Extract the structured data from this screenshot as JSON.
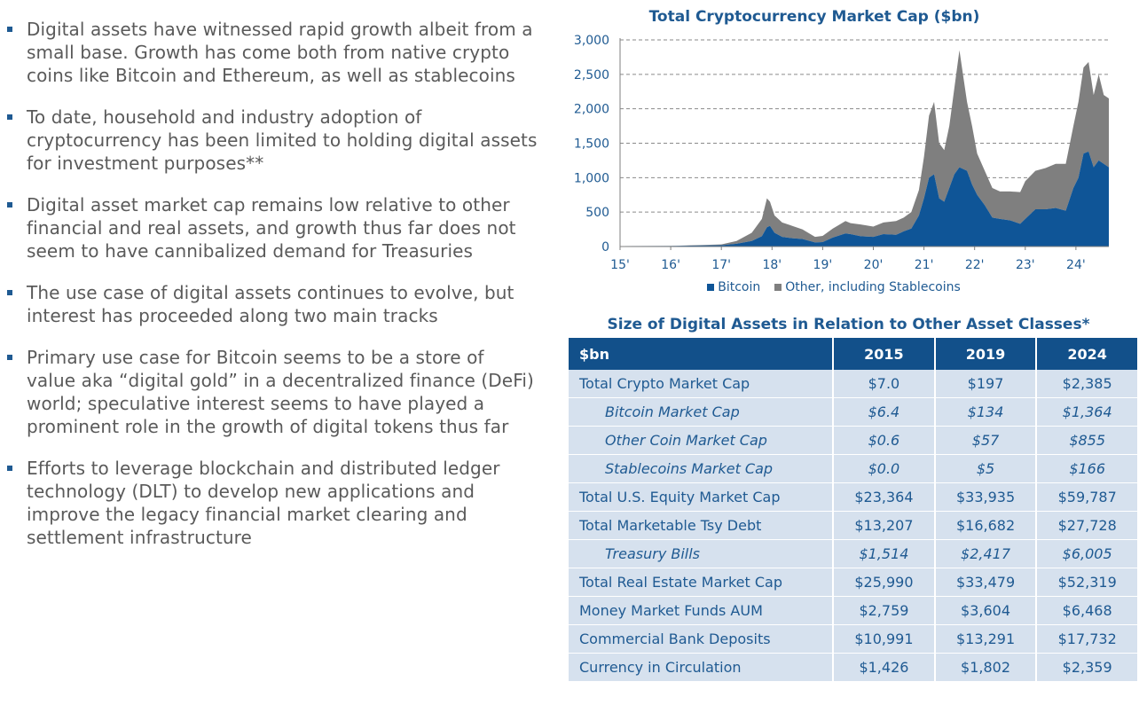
{
  "bullets": [
    "Digital assets have witnessed rapid growth albeit from a small base. Growth has come both from native crypto coins like Bitcoin and Ethereum, as well as stablecoins",
    "To date, household and industry adoption of cryptocurrency has been limited to holding digital assets for investment purposes**",
    "Digital asset market cap remains low relative to other financial and real assets, and growth thus far does not seem to have cannibalized demand for Treasuries",
    "The use case of digital assets continues to evolve, but interest has proceeded along two main tracks",
    "Primary use case for Bitcoin seems to be a store of value aka “digital gold” in a decentralized finance (DeFi) world; speculative interest seems to have played a prominent role in the growth of digital tokens thus far",
    "Efforts to leverage blockchain and distributed ledger technology (DLT) to develop new applications and improve the legacy financial market clearing and settlement infrastructure"
  ],
  "colors": {
    "accent": "#1f5a92",
    "bitcoin": "#0f5597",
    "other": "#7f7f7f",
    "table_header": "#12508a",
    "table_cell": "#d6e1ee"
  },
  "chart_data": [
    {
      "type": "area",
      "title": "Total Cryptocurrency Market Cap ($bn)",
      "xlabel": "",
      "ylabel": "",
      "x_ticks": [
        "15'",
        "16'",
        "17'",
        "18'",
        "19'",
        "20'",
        "21'",
        "22'",
        "23'",
        "24'"
      ],
      "y_ticks": [
        "0",
        "500",
        "1,000",
        "1,500",
        "2,000",
        "2,500",
        "3,000"
      ],
      "ylim": [
        0,
        3000
      ],
      "xlim": [
        2015.0,
        2024.65
      ],
      "grid": "horizontal-dashed",
      "legend_position": "bottom",
      "x": [
        2015.0,
        2016.0,
        2017.0,
        2017.3,
        2017.6,
        2017.8,
        2017.9,
        2017.96,
        2018.05,
        2018.2,
        2018.4,
        2018.6,
        2018.85,
        2019.0,
        2019.2,
        2019.45,
        2019.55,
        2019.75,
        2020.0,
        2020.2,
        2020.45,
        2020.6,
        2020.75,
        2020.9,
        2021.0,
        2021.1,
        2021.2,
        2021.3,
        2021.4,
        2021.5,
        2021.6,
        2021.7,
        2021.85,
        2021.95,
        2022.05,
        2022.2,
        2022.35,
        2022.5,
        2022.7,
        2022.9,
        2023.0,
        2023.2,
        2023.4,
        2023.6,
        2023.8,
        2023.95,
        2024.05,
        2024.15,
        2024.25,
        2024.35,
        2024.45,
        2024.55,
        2024.65
      ],
      "series": [
        {
          "name": "Bitcoin",
          "values": [
            6,
            8,
            19,
            40,
            80,
            150,
            280,
            300,
            200,
            140,
            120,
            110,
            60,
            65,
            130,
            190,
            180,
            150,
            140,
            180,
            170,
            220,
            260,
            450,
            700,
            1000,
            1050,
            700,
            650,
            850,
            1050,
            1150,
            1100,
            900,
            750,
            600,
            420,
            400,
            380,
            330,
            400,
            540,
            540,
            560,
            520,
            850,
            1000,
            1350,
            1380,
            1150,
            1250,
            1200,
            1150
          ]
        },
        {
          "name": "Other, including Stablecoins",
          "values": [
            1,
            2,
            11,
            40,
            120,
            250,
            420,
            350,
            250,
            210,
            180,
            140,
            80,
            90,
            130,
            180,
            160,
            170,
            150,
            170,
            200,
            200,
            240,
            370,
            600,
            900,
            1050,
            800,
            750,
            900,
            1250,
            1700,
            1000,
            850,
            600,
            500,
            430,
            400,
            420,
            460,
            550,
            560,
            600,
            640,
            680,
            900,
            1100,
            1250,
            1300,
            1050,
            1250,
            1000,
            1000
          ]
        }
      ]
    },
    {
      "type": "table",
      "title": "Size of Digital Assets in Relation to Other Asset Classes*",
      "headers": [
        "$bn",
        "2015",
        "2019",
        "2024"
      ],
      "rows": [
        {
          "label": "Total Crypto Market Cap",
          "sub": false,
          "values": [
            "$7.0",
            "$197",
            "$2,385"
          ]
        },
        {
          "label": "Bitcoin Market Cap",
          "sub": true,
          "values": [
            "$6.4",
            "$134",
            "$1,364"
          ]
        },
        {
          "label": "Other Coin Market Cap",
          "sub": true,
          "values": [
            "$0.6",
            "$57",
            "$855"
          ]
        },
        {
          "label": "Stablecoins Market Cap",
          "sub": true,
          "values": [
            "$0.0",
            "$5",
            "$166"
          ]
        },
        {
          "label": "Total U.S. Equity Market Cap",
          "sub": false,
          "values": [
            "$23,364",
            "$33,935",
            "$59,787"
          ]
        },
        {
          "label": "Total Marketable Tsy Debt",
          "sub": false,
          "values": [
            "$13,207",
            "$16,682",
            "$27,728"
          ]
        },
        {
          "label": "Treasury Bills",
          "sub": true,
          "values": [
            "$1,514",
            "$2,417",
            "$6,005"
          ]
        },
        {
          "label": "Total Real Estate Market Cap",
          "sub": false,
          "values": [
            "$25,990",
            "$33,479",
            "$52,319"
          ]
        },
        {
          "label": "Money Market Funds AUM",
          "sub": false,
          "values": [
            "$2,759",
            "$3,604",
            "$6,468"
          ]
        },
        {
          "label": "Commercial Bank Deposits",
          "sub": false,
          "values": [
            "$10,991",
            "$13,291",
            "$17,732"
          ]
        },
        {
          "label": "Currency in Circulation",
          "sub": false,
          "values": [
            "$1,426",
            "$1,802",
            "$2,359"
          ]
        }
      ]
    }
  ]
}
